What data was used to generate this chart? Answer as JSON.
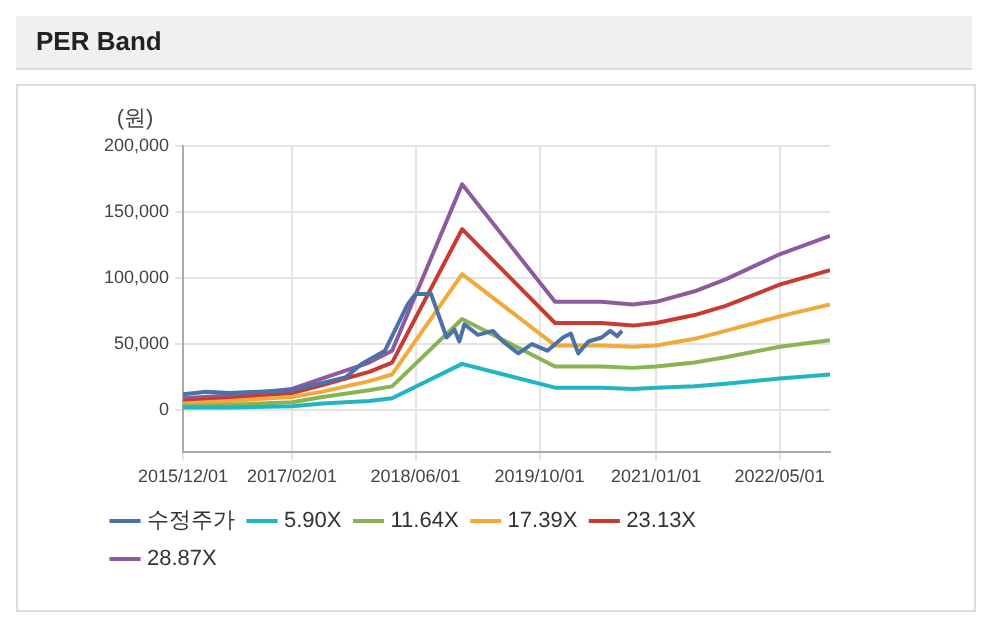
{
  "chart_data": {
    "type": "line",
    "title": "PER Band",
    "ylabel": "(원)",
    "xlim": [
      "2015-12-01",
      "2022-11-15"
    ],
    "xticks": [
      {
        "value": "2015-12-01",
        "label": "2015/12/01"
      },
      {
        "value": "2017-02-01",
        "label": "2017/02/01"
      },
      {
        "value": "2018-06-01",
        "label": "2018/06/01"
      },
      {
        "value": "2019-10-01",
        "label": "2019/10/01"
      },
      {
        "value": "2021-01-01",
        "label": "2021/01/01"
      },
      {
        "value": "2022-05-01",
        "label": "2022/05/01"
      }
    ],
    "ylim": [
      -32000,
      200000
    ],
    "yticks": [
      0,
      {
        "value": 50000,
        "label": "50,000"
      },
      {
        "value": 100000,
        "label": "100,000"
      },
      {
        "value": 150000,
        "label": "150,000"
      },
      {
        "value": 200000,
        "label": "200,000"
      }
    ],
    "grid": true,
    "legend": "bottom",
    "marker": "none",
    "line_style": "solid",
    "series": [
      {
        "name": "수정주가",
        "color": "#4a72a8",
        "x": [
          "2015-12-01",
          "2016-03-01",
          "2016-06-01",
          "2017-02-01",
          "2017-09-01",
          "2017-11-01",
          "2018-02-01",
          "2018-05-01",
          "2018-06-01",
          "2018-08-01",
          "2018-10-01",
          "2018-11-01",
          "2018-11-20",
          "2018-12-10",
          "2019-02-01",
          "2019-04-01",
          "2019-05-10",
          "2019-07-10",
          "2019-09-01",
          "2019-11-01",
          "2020-01-01",
          "2020-02-01",
          "2020-03-01",
          "2020-04-10",
          "2020-06-01",
          "2020-07-05",
          "2020-08-01",
          "2020-08-20"
        ],
        "values": [
          12000,
          14000,
          13000,
          15000,
          25000,
          35000,
          45000,
          80000,
          88000,
          88000,
          55000,
          61000,
          52000,
          65000,
          57000,
          60000,
          52000,
          43000,
          50000,
          45000,
          55000,
          58000,
          43000,
          52000,
          55000,
          60000,
          56000,
          60000
        ]
      },
      {
        "name": "5.90X",
        "color": "#1fb5c1",
        "x": [
          "2015-12-01",
          "2016-06-01",
          "2017-02-01",
          "2017-06-01",
          "2017-12-01",
          "2018-03-01",
          "2018-12-01",
          "2019-12-01",
          "2020-06-01",
          "2020-10-01",
          "2021-01-01",
          "2021-06-01",
          "2021-10-01",
          "2022-05-01",
          "2022-11-15"
        ],
        "values": [
          2000,
          2000,
          3000,
          5000,
          7000,
          9000,
          35000,
          17000,
          17000,
          16000,
          17000,
          18000,
          20000,
          24000,
          27000
        ]
      },
      {
        "name": "11.64X",
        "color": "#8ab453",
        "x": [
          "2015-12-01",
          "2016-06-01",
          "2017-02-01",
          "2017-06-01",
          "2017-12-01",
          "2018-03-01",
          "2018-12-01",
          "2019-12-01",
          "2020-06-01",
          "2020-10-01",
          "2021-01-01",
          "2021-06-01",
          "2021-10-01",
          "2022-05-01",
          "2022-11-15"
        ],
        "values": [
          3000,
          4000,
          6000,
          10000,
          15000,
          18000,
          69000,
          33000,
          33000,
          32000,
          33000,
          36000,
          40000,
          48000,
          53000
        ]
      },
      {
        "name": "17.39X",
        "color": "#f2a93b",
        "x": [
          "2015-12-01",
          "2016-06-01",
          "2017-02-01",
          "2017-06-01",
          "2017-12-01",
          "2018-03-01",
          "2018-12-01",
          "2019-12-01",
          "2020-06-01",
          "2020-10-01",
          "2021-01-01",
          "2021-06-01",
          "2021-10-01",
          "2022-05-01",
          "2022-11-15"
        ],
        "values": [
          5000,
          7000,
          10000,
          14000,
          22000,
          27000,
          103000,
          49000,
          49000,
          48000,
          49000,
          54000,
          60000,
          71000,
          80000
        ]
      },
      {
        "name": "23.13X",
        "color": "#c83a32",
        "x": [
          "2015-12-01",
          "2016-06-01",
          "2017-02-01",
          "2017-06-01",
          "2017-12-01",
          "2018-03-01",
          "2018-12-01",
          "2019-12-01",
          "2020-06-01",
          "2020-10-01",
          "2021-01-01",
          "2021-06-01",
          "2021-10-01",
          "2022-05-01",
          "2022-11-15"
        ],
        "values": [
          7000,
          9000,
          13000,
          19000,
          29000,
          36000,
          137000,
          66000,
          66000,
          64000,
          66000,
          72000,
          79000,
          95000,
          106000
        ]
      },
      {
        "name": "28.87X",
        "color": "#8e5a9e",
        "x": [
          "2015-12-01",
          "2016-06-01",
          "2017-02-01",
          "2017-06-01",
          "2017-12-01",
          "2018-03-01",
          "2018-12-01",
          "2019-12-01",
          "2020-06-01",
          "2020-10-01",
          "2021-01-01",
          "2021-06-01",
          "2021-10-01",
          "2022-05-01",
          "2022-11-15"
        ],
        "values": [
          9000,
          11000,
          16000,
          24000,
          36000,
          45000,
          171000,
          82000,
          82000,
          80000,
          82000,
          90000,
          99000,
          118000,
          132000
        ]
      }
    ]
  }
}
